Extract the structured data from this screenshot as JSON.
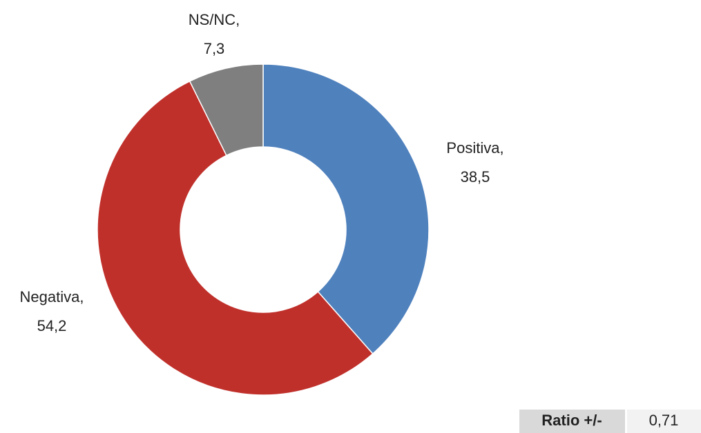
{
  "chart_data": {
    "type": "donut",
    "categories": [
      "Positiva,",
      "Negativa,",
      "NS/NC,"
    ],
    "values": [
      38.5,
      54.2,
      7.3
    ],
    "value_labels": [
      "38,5",
      "54,2",
      "7,3"
    ],
    "colors": [
      "#4f81bd",
      "#c0302b",
      "#7f7f7f"
    ],
    "ratio": {
      "label": "Ratio +/-",
      "value": 0.71,
      "value_label": "0,71"
    }
  }
}
